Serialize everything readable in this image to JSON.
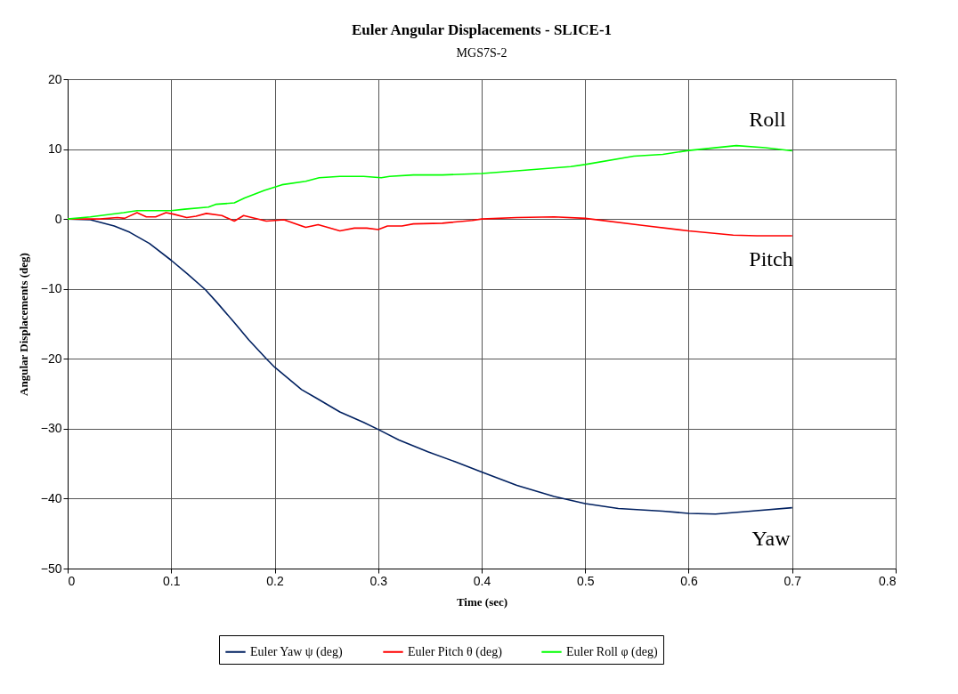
{
  "chart_data": {
    "type": "line",
    "title": "Euler Angular Displacements - SLICE-1",
    "subtitle": "MGS7S-2",
    "xlabel": "Time (sec)",
    "ylabel": "Angular Displacements (deg)",
    "xlim": [
      0,
      0.8
    ],
    "xticks": [
      0,
      0.1,
      0.2,
      0.3,
      0.4,
      0.5,
      0.6,
      0.7,
      0.8
    ],
    "ylim": [
      -50,
      20
    ],
    "yticks": [
      -50,
      -40,
      -30,
      -20,
      -10,
      0,
      10,
      20
    ],
    "grid": true,
    "legend": "bottom",
    "marker": "none",
    "line_style": "solid",
    "series": [
      {
        "name": "Euler Yaw ψ (deg)",
        "color": "#002060",
        "x": [
          0,
          0.022,
          0.045,
          0.06,
          0.079,
          0.1,
          0.116,
          0.133,
          0.144,
          0.161,
          0.175,
          0.192,
          0.2,
          0.226,
          0.24,
          0.263,
          0.286,
          0.3,
          0.32,
          0.348,
          0.374,
          0.4,
          0.434,
          0.47,
          0.5,
          0.532,
          0.575,
          0.6,
          0.626,
          0.66,
          0.7
        ],
        "values": [
          0,
          -0.1,
          -1.0,
          -1.9,
          -3.5,
          -5.9,
          -7.9,
          -10.1,
          -11.9,
          -14.8,
          -17.3,
          -20,
          -21.2,
          -24.4,
          -25.6,
          -27.6,
          -29.1,
          -30.1,
          -31.6,
          -33.3,
          -34.7,
          -36.2,
          -38.1,
          -39.7,
          -40.7,
          -41.4,
          -41.8,
          -42.1,
          -42.2,
          -41.8,
          -41.3
        ]
      },
      {
        "name": "Euler Pitch θ (deg)",
        "color": "#ff0000",
        "x": [
          0,
          0.031,
          0.048,
          0.055,
          0.067,
          0.076,
          0.085,
          0.095,
          0.102,
          0.115,
          0.124,
          0.134,
          0.149,
          0.161,
          0.17,
          0.192,
          0.209,
          0.23,
          0.242,
          0.263,
          0.277,
          0.289,
          0.3,
          0.309,
          0.323,
          0.334,
          0.362,
          0.391,
          0.4,
          0.434,
          0.47,
          0.5,
          0.555,
          0.6,
          0.643,
          0.666,
          0.7
        ],
        "values": [
          0,
          0,
          0.2,
          0.1,
          0.9,
          0.3,
          0.3,
          0.9,
          0.7,
          0.2,
          0.4,
          0.8,
          0.5,
          -0.3,
          0.5,
          -0.3,
          -0.1,
          -1.2,
          -0.8,
          -1.7,
          -1.3,
          -1.3,
          -1.5,
          -1.0,
          -1.0,
          -0.7,
          -0.6,
          -0.2,
          0,
          0.2,
          0.3,
          0.1,
          -0.9,
          -1.7,
          -2.3,
          -2.4,
          -2.4
        ]
      },
      {
        "name": "Euler Roll φ (deg)",
        "color": "#00ff00",
        "x": [
          0,
          0.022,
          0.054,
          0.067,
          0.1,
          0.113,
          0.136,
          0.143,
          0.161,
          0.171,
          0.19,
          0.207,
          0.23,
          0.243,
          0.263,
          0.286,
          0.303,
          0.311,
          0.334,
          0.362,
          0.4,
          0.434,
          0.486,
          0.5,
          0.547,
          0.575,
          0.6,
          0.646,
          0.674,
          0.7
        ],
        "values": [
          0,
          0.3,
          0.9,
          1.2,
          1.2,
          1.4,
          1.7,
          2.1,
          2.3,
          3.0,
          4.1,
          4.9,
          5.4,
          5.9,
          6.1,
          6.1,
          5.9,
          6.1,
          6.3,
          6.3,
          6.5,
          6.9,
          7.5,
          7.8,
          9.0,
          9.25,
          9.8,
          10.5,
          10.2,
          9.75
        ]
      }
    ],
    "annotations": [
      "Roll",
      "Pitch",
      "Yaw"
    ]
  }
}
